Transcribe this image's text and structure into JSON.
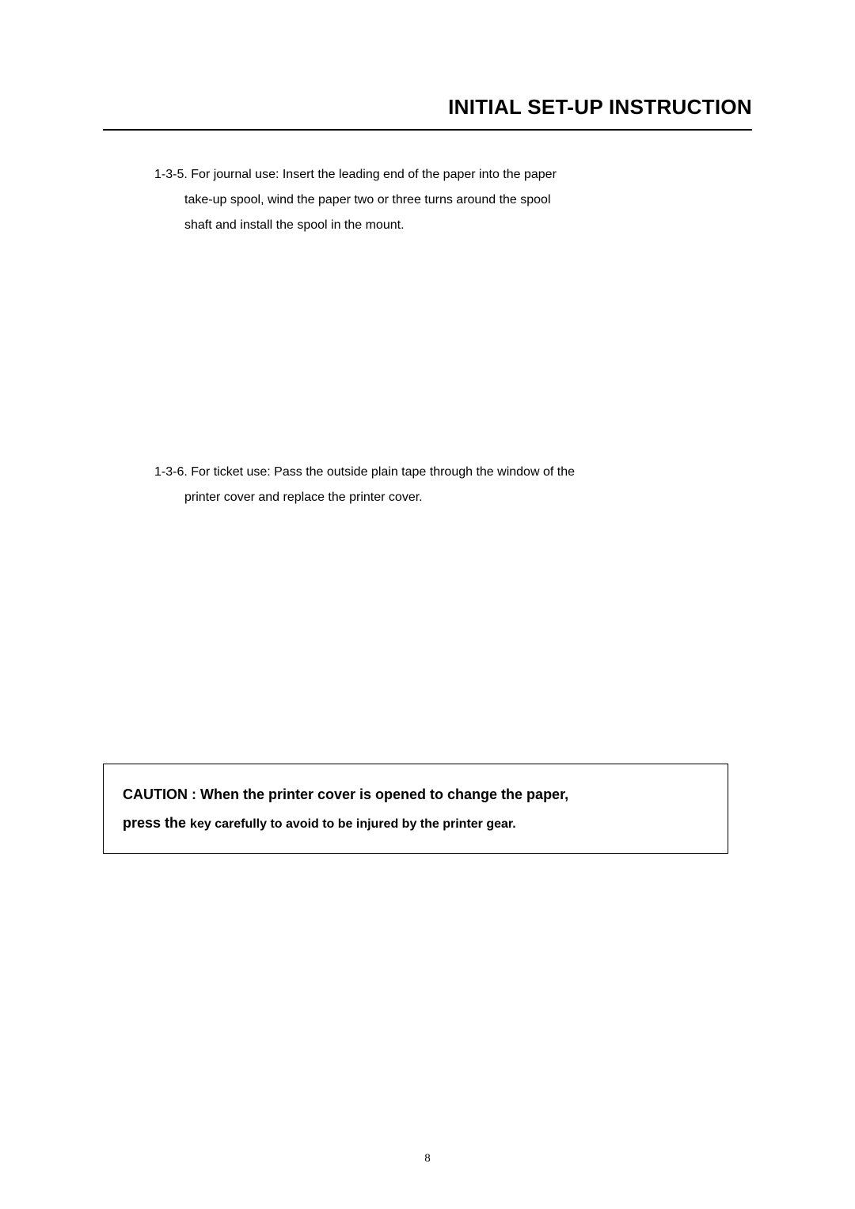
{
  "header": {
    "title": "INITIAL SET-UP INSTRUCTION"
  },
  "instructions": {
    "item1": {
      "number": "1-3-5.",
      "line1": "For journal use: Insert the leading end of the paper into the paper",
      "line2": "take-up spool, wind the paper two or three turns around the spool",
      "line3": "shaft and install the spool in the mount."
    },
    "item2": {
      "number": "1-3-6.",
      "line1": "For ticket use: Pass the outside plain tape through the window of the",
      "line2": "printer cover and replace the printer cover."
    }
  },
  "caution": {
    "label": "CAUTION : ",
    "text1": "When the printer cover is opened to change the paper,",
    "line2_bold": "press the ",
    "line2_rest": "key carefully to avoid to be injured by the printer gear."
  },
  "page_number": "8",
  "styling": {
    "background_color": "#ffffff",
    "text_color": "#000000",
    "border_color": "#000000",
    "header_font_size": 26,
    "body_font_size": 16,
    "caution_font_size": 18,
    "page_number_font_size": 15
  }
}
